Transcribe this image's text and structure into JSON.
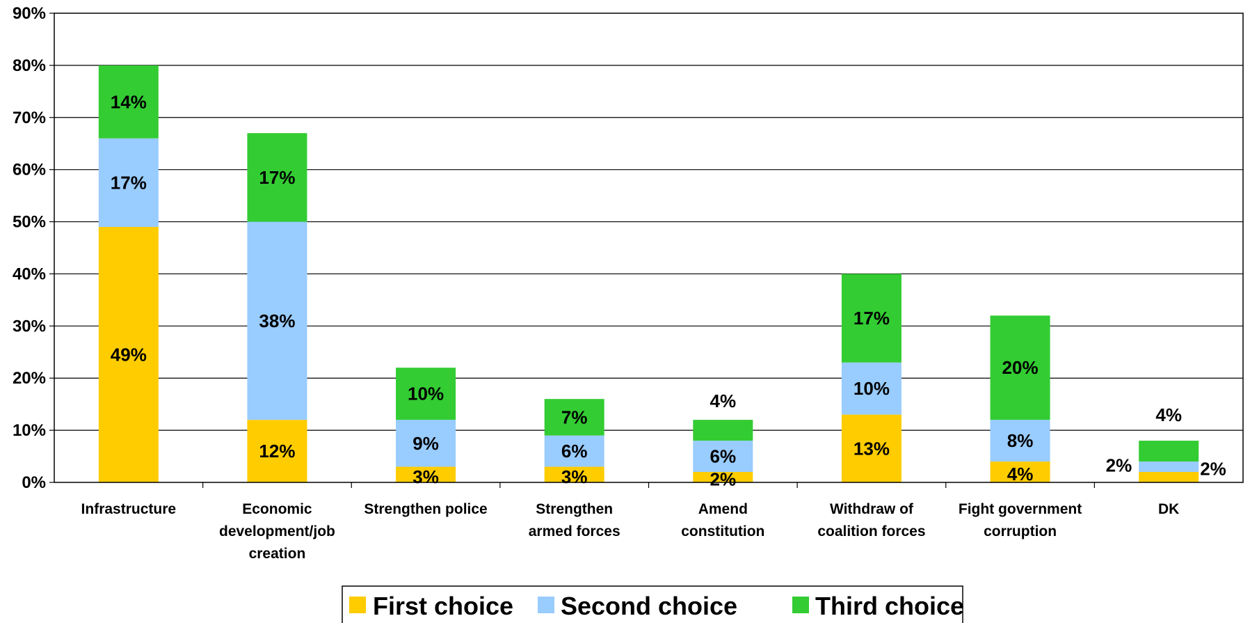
{
  "chart_data": {
    "type": "bar",
    "stacked": true,
    "title": "",
    "xlabel": "",
    "ylabel": "",
    "ylim": [
      0,
      90
    ],
    "yticks": [
      "0%",
      "10%",
      "20%",
      "30%",
      "40%",
      "50%",
      "60%",
      "70%",
      "80%",
      "90%"
    ],
    "grid": true,
    "legend_position": "bottom",
    "categories": [
      [
        "Infrastructure"
      ],
      [
        "Economic",
        "development/job",
        "creation"
      ],
      [
        "Strengthen police"
      ],
      [
        "Strengthen",
        "armed forces"
      ],
      [
        "Amend",
        "constitution"
      ],
      [
        "Withdraw of",
        "coalition forces"
      ],
      [
        "Fight government",
        "corruption"
      ],
      [
        "DK"
      ]
    ],
    "series": [
      {
        "name": "First choice",
        "color": "#FFCC00",
        "values": [
          49,
          12,
          3,
          3,
          2,
          13,
          4,
          2
        ],
        "labels": [
          "49%",
          "12%",
          "3%",
          "3%",
          "2%",
          "13%",
          "4%",
          "2%"
        ]
      },
      {
        "name": "Second choice",
        "color": "#99CCFF",
        "values": [
          17,
          38,
          9,
          6,
          6,
          10,
          8,
          2
        ],
        "labels": [
          "17%",
          "38%",
          "9%",
          "6%",
          "6%",
          "10%",
          "8%",
          "2%"
        ]
      },
      {
        "name": "Third choice",
        "color": "#33CC33",
        "values": [
          14,
          17,
          10,
          7,
          4,
          17,
          20,
          4
        ],
        "labels": [
          "14%",
          "17%",
          "10%",
          "7%",
          "4%",
          "17%",
          "20%",
          "4%"
        ]
      }
    ]
  }
}
